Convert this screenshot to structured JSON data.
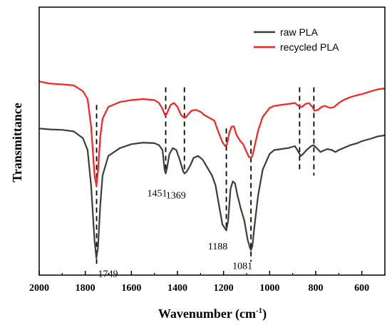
{
  "chart_data": {
    "type": "line",
    "xlabel": "Wavenumber (cm",
    "xlabel_sup": "-1",
    "xlabel_close": ")",
    "ylabel": "Transmittance",
    "xlim": [
      2000,
      500
    ],
    "x_reversed": true,
    "ylim": [
      0,
      100
    ],
    "x_ticks": [
      2000,
      1800,
      1600,
      1400,
      1200,
      1000,
      800,
      600
    ],
    "y_ticks_shown": false,
    "grid": false,
    "legend_position": "top-right",
    "series": [
      {
        "name": "raw PLA",
        "color": "#3a3f3a",
        "points": [
          [
            2000,
            69
          ],
          [
            1950,
            68.5
          ],
          [
            1900,
            68.3
          ],
          [
            1850,
            67.5
          ],
          [
            1810,
            64
          ],
          [
            1790,
            58
          ],
          [
            1775,
            40
          ],
          [
            1760,
            12
          ],
          [
            1752,
            3
          ],
          [
            1745,
            8
          ],
          [
            1735,
            30
          ],
          [
            1725,
            45
          ],
          [
            1700,
            55
          ],
          [
            1650,
            59
          ],
          [
            1600,
            61
          ],
          [
            1550,
            61.8
          ],
          [
            1500,
            61.5
          ],
          [
            1480,
            60.5
          ],
          [
            1465,
            58
          ],
          [
            1456,
            48
          ],
          [
            1451,
            46
          ],
          [
            1445,
            49
          ],
          [
            1435,
            56
          ],
          [
            1420,
            59
          ],
          [
            1405,
            58
          ],
          [
            1390,
            53
          ],
          [
            1375,
            47
          ],
          [
            1369,
            46
          ],
          [
            1360,
            47
          ],
          [
            1345,
            50
          ],
          [
            1330,
            54
          ],
          [
            1310,
            55
          ],
          [
            1290,
            53
          ],
          [
            1270,
            49
          ],
          [
            1250,
            45
          ],
          [
            1235,
            40
          ],
          [
            1220,
            30
          ],
          [
            1205,
            20
          ],
          [
            1188,
            17
          ],
          [
            1180,
            22
          ],
          [
            1170,
            38
          ],
          [
            1160,
            42
          ],
          [
            1150,
            41
          ],
          [
            1140,
            35
          ],
          [
            1125,
            28
          ],
          [
            1110,
            22
          ],
          [
            1095,
            12
          ],
          [
            1085,
            8
          ],
          [
            1081,
            7
          ],
          [
            1075,
            9
          ],
          [
            1065,
            20
          ],
          [
            1050,
            35
          ],
          [
            1030,
            48
          ],
          [
            1000,
            56
          ],
          [
            980,
            58
          ],
          [
            950,
            58.5
          ],
          [
            920,
            59
          ],
          [
            890,
            60
          ],
          [
            875,
            57
          ],
          [
            865,
            55
          ],
          [
            855,
            56
          ],
          [
            840,
            58
          ],
          [
            820,
            60
          ],
          [
            810,
            60.5
          ],
          [
            800,
            59.5
          ],
          [
            780,
            57
          ],
          [
            760,
            58
          ],
          [
            750,
            58.5
          ],
          [
            730,
            58
          ],
          [
            715,
            57
          ],
          [
            700,
            58
          ],
          [
            680,
            59
          ],
          [
            650,
            60.5
          ],
          [
            620,
            61.5
          ],
          [
            600,
            62.5
          ],
          [
            560,
            63.8
          ],
          [
            530,
            65
          ],
          [
            500,
            65.5
          ]
        ]
      },
      {
        "name": "recycled PLA",
        "color": "#ff2020",
        "points": [
          [
            2000,
            93
          ],
          [
            1980,
            92.5
          ],
          [
            1960,
            92
          ],
          [
            1930,
            91.7
          ],
          [
            1900,
            91.5
          ],
          [
            1850,
            91
          ],
          [
            1810,
            88
          ],
          [
            1790,
            84
          ],
          [
            1775,
            70
          ],
          [
            1760,
            45
          ],
          [
            1752,
            40
          ],
          [
            1745,
            47
          ],
          [
            1735,
            65
          ],
          [
            1725,
            74
          ],
          [
            1700,
            80
          ],
          [
            1650,
            82.5
          ],
          [
            1600,
            83.5
          ],
          [
            1550,
            84
          ],
          [
            1500,
            83.5
          ],
          [
            1480,
            82
          ],
          [
            1465,
            79
          ],
          [
            1455,
            76
          ],
          [
            1451,
            75.5
          ],
          [
            1445,
            77
          ],
          [
            1430,
            81
          ],
          [
            1415,
            82
          ],
          [
            1400,
            80
          ],
          [
            1385,
            76
          ],
          [
            1372,
            74.5
          ],
          [
            1365,
            74.5
          ],
          [
            1355,
            76
          ],
          [
            1340,
            78
          ],
          [
            1320,
            78.5
          ],
          [
            1300,
            77.5
          ],
          [
            1285,
            76
          ],
          [
            1270,
            75
          ],
          [
            1255,
            74
          ],
          [
            1240,
            73
          ],
          [
            1225,
            68
          ],
          [
            1205,
            62
          ],
          [
            1193,
            60
          ],
          [
            1185,
            61
          ],
          [
            1175,
            67
          ],
          [
            1165,
            70
          ],
          [
            1155,
            70
          ],
          [
            1145,
            66
          ],
          [
            1130,
            63
          ],
          [
            1115,
            61
          ],
          [
            1100,
            57
          ],
          [
            1090,
            54.5
          ],
          [
            1081,
            54
          ],
          [
            1075,
            55
          ],
          [
            1065,
            60
          ],
          [
            1050,
            68
          ],
          [
            1030,
            75
          ],
          [
            1000,
            79.5
          ],
          [
            980,
            80.5
          ],
          [
            950,
            81
          ],
          [
            920,
            81.5
          ],
          [
            890,
            82
          ],
          [
            875,
            80.5
          ],
          [
            860,
            80
          ],
          [
            845,
            81.5
          ],
          [
            830,
            82
          ],
          [
            815,
            80
          ],
          [
            805,
            78
          ],
          [
            790,
            78.5
          ],
          [
            775,
            80
          ],
          [
            760,
            80.5
          ],
          [
            750,
            80
          ],
          [
            735,
            79.5
          ],
          [
            720,
            80
          ],
          [
            700,
            82
          ],
          [
            680,
            83.5
          ],
          [
            650,
            85
          ],
          [
            620,
            86
          ],
          [
            600,
            86.5
          ],
          [
            560,
            88
          ],
          [
            530,
            89
          ],
          [
            500,
            89.5
          ]
        ]
      }
    ],
    "peak_markers": [
      {
        "x": 1751,
        "label": "1749",
        "top_y": 81,
        "bottom_y": 0,
        "label_y": -3
      },
      {
        "x": 1451,
        "label": "1451",
        "top_y": 90,
        "bottom_y": 46,
        "label_y": 38
      },
      {
        "x": 1370,
        "label": "1369",
        "top_y": 90,
        "bottom_y": 46,
        "label_y": 37
      },
      {
        "x": 1188,
        "label": "1188",
        "top_y": 69,
        "bottom_y": 17,
        "label_y": 11
      },
      {
        "x": 1081,
        "label": "1081",
        "top_y": 63,
        "bottom_y": 1,
        "label_y": 1
      },
      {
        "x": 870,
        "label": "",
        "top_y": 90,
        "bottom_y": 48,
        "label_y": 0
      },
      {
        "x": 808,
        "label": "",
        "top_y": 90,
        "bottom_y": 45,
        "label_y": 0
      }
    ]
  }
}
